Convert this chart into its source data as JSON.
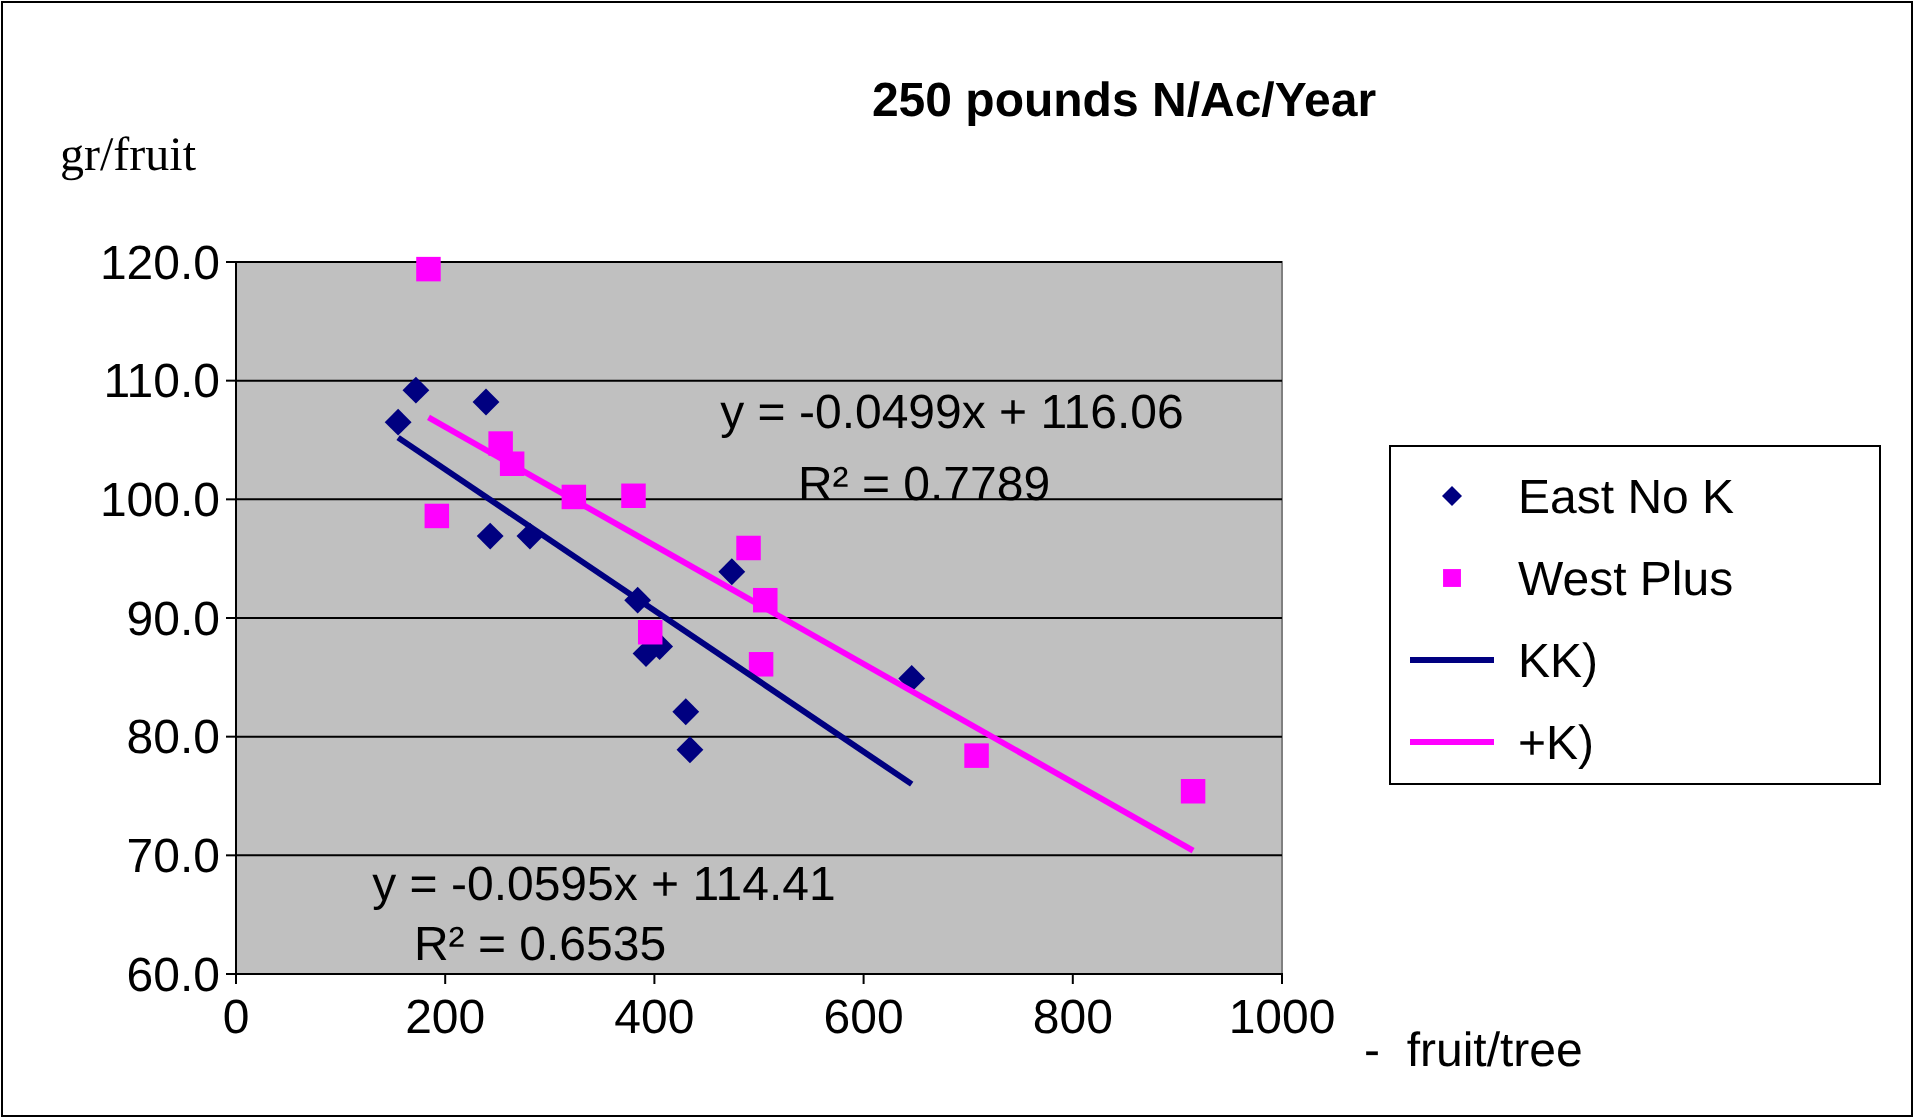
{
  "chart_data": {
    "type": "scatter",
    "title": "250 pounds N/Ac/Year",
    "xlabel": "-  fruit/tree",
    "ylabel": "gr/fruit",
    "xlim": [
      0,
      1000
    ],
    "xticks": [
      0,
      200,
      400,
      600,
      800,
      1000
    ],
    "ylim": [
      60,
      120
    ],
    "yticks": [
      {
        "value": 60,
        "label": "60.0"
      },
      {
        "value": 70,
        "label": "70.0"
      },
      {
        "value": 80,
        "label": "80.0"
      },
      {
        "value": 90,
        "label": "90.0"
      },
      {
        "value": 100,
        "label": "100.0"
      },
      {
        "value": 110,
        "label": "110.0"
      },
      {
        "value": 120,
        "label": "120.0"
      }
    ],
    "grid": "y",
    "legend": "right",
    "series": [
      {
        "name": "East No K",
        "marker": "diamond",
        "color": "#000080",
        "x": [
          155,
          172,
          239,
          243,
          281,
          384,
          392,
          405,
          430,
          434,
          474,
          646
        ],
        "values": [
          106.5,
          109.2,
          108.2,
          96.9,
          96.9,
          91.5,
          87.0,
          87.6,
          82.1,
          78.9,
          93.9,
          84.9
        ]
      },
      {
        "name": "West Plus",
        "marker": "square",
        "color": "#ff00ff",
        "x": [
          184,
          192,
          253,
          264,
          323,
          380,
          396,
          490,
          506,
          502,
          708,
          915
        ],
        "values": [
          119.4,
          98.6,
          104.7,
          103.0,
          100.2,
          100.3,
          88.8,
          95.9,
          91.5,
          86.1,
          78.4,
          75.4
        ]
      },
      {
        "name": "KK)",
        "type": "line",
        "marker": "none",
        "color": "#000080",
        "x": [
          155,
          646
        ],
        "values": [
          105.2,
          76.0
        ]
      },
      {
        "name": "+K)",
        "type": "line",
        "marker": "none",
        "color": "#ff00ff",
        "x": [
          184,
          915
        ],
        "values": [
          106.9,
          70.4
        ]
      }
    ],
    "annotations": [
      "y = -0.0499x + 116.06",
      "R² = 0.7789",
      "y = -0.0595x + 114.41",
      "R² = 0.6535"
    ]
  }
}
